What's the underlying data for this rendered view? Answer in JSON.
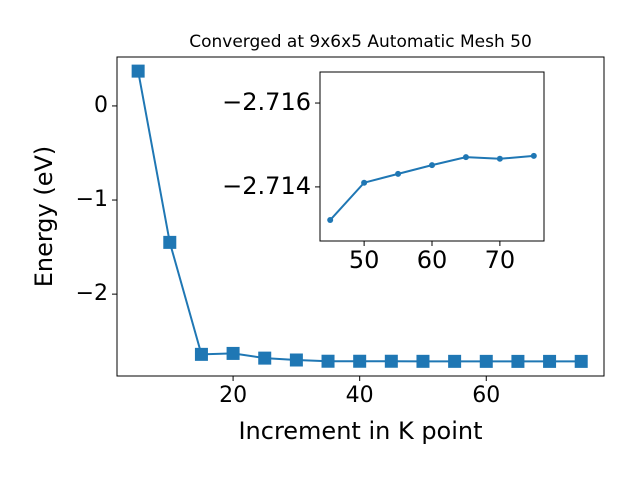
{
  "chart_data": [
    {
      "type": "line",
      "title": "Converged at 9x6x5 Automatic Mesh 50",
      "xlabel": "Increment in K point",
      "ylabel": "Energy (eV)",
      "x": [
        5,
        10,
        15,
        20,
        25,
        30,
        35,
        40,
        45,
        50,
        55,
        60,
        65,
        70,
        75
      ],
      "series": [
        {
          "color": "#1f77b4",
          "marker": "square",
          "values": [
            0.37,
            -1.45,
            -2.64,
            -2.63,
            -2.68,
            -2.7,
            -2.713,
            -2.7132,
            -2.71321,
            -2.7141,
            -2.71431,
            -2.71452,
            -2.71471,
            -2.71467,
            -2.71474
          ]
        }
      ],
      "xlim": [
        1.66,
        78.6
      ],
      "ylim": [
        -2.87,
        0.52
      ],
      "xticks": [
        20,
        40,
        60
      ],
      "yticks": [
        {
          "value": -2,
          "label": "−2"
        },
        {
          "value": -1,
          "label": "−1"
        },
        0
      ]
    },
    {
      "type": "line",
      "x": [
        45,
        50,
        55,
        60,
        65,
        70,
        75
      ],
      "series": [
        {
          "color": "#1f77b4",
          "marker": "circle",
          "values": [
            -2.71321,
            -2.7141,
            -2.71431,
            -2.71452,
            -2.71471,
            -2.71467,
            -2.71474
          ]
        }
      ],
      "xlim": [
        43.5,
        76.5
      ],
      "ylim": [
        -2.71271,
        -2.71674
      ],
      "xticks": [
        50,
        60,
        70
      ],
      "yticks": [
        {
          "value": -2.714,
          "label": "−2.714"
        },
        {
          "value": -2.716,
          "label": "−2.716"
        }
      ]
    }
  ]
}
